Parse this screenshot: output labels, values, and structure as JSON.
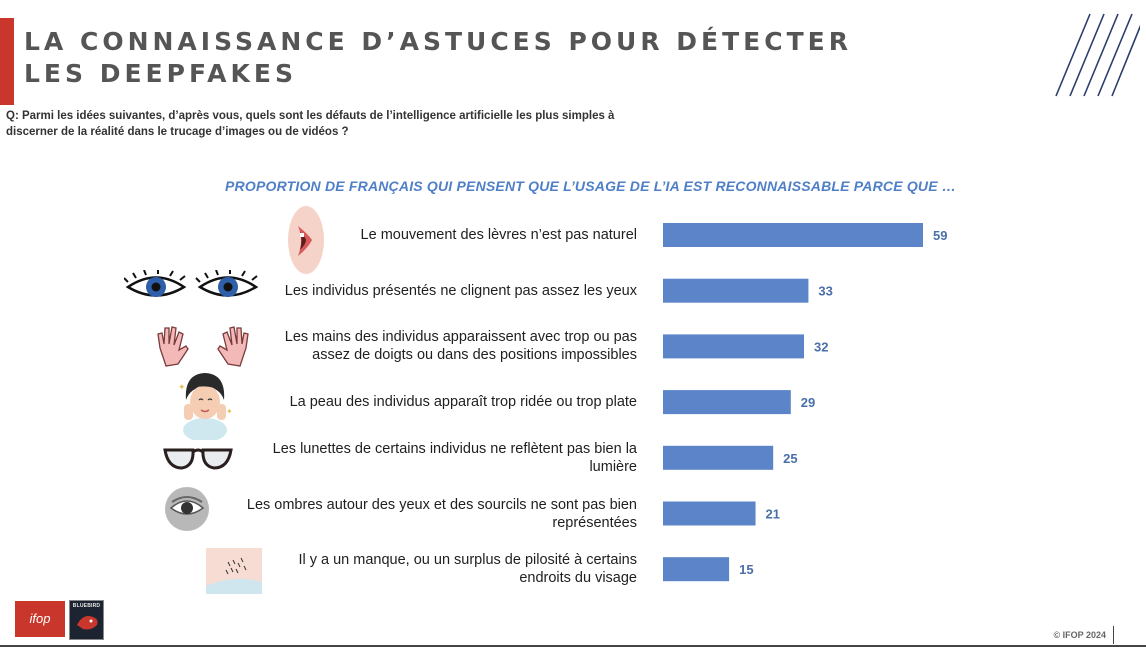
{
  "title": "LA CONNAISSANCE D’ASTUCES POUR DÉTECTER LES DEEPFAKES",
  "question": "Q: Parmi les idées suivantes, d’après vous, quels sont les défauts de l’intelligence artificielle les plus simples à discerner de la réalité dans le trucage d’images ou de vidéos ?",
  "colors": {
    "accent": "#c9372c",
    "bar": "#5b85c8",
    "subtitle": "#4f7fc7",
    "value": "#4a6fa8"
  },
  "chart_data": {
    "type": "bar",
    "orientation": "horizontal",
    "title": "PROPORTION DE FRANÇAIS QUI PENSENT QUE L’USAGE DE L’IA EST RECONNAISSABLE  PARCE QUE …",
    "xlabel": "",
    "ylabel": "",
    "xlim": [
      0,
      100
    ],
    "grid": false,
    "categories": [
      "Le mouvement des lèvres n’est pas naturel",
      "Les individus présentés ne clignent pas assez les yeux",
      "Les mains des individus apparaissent avec trop ou pas assez de doigts ou dans des positions impossibles",
      "La peau des individus apparaît trop ridée ou trop plate",
      "Les lunettes de certains individus ne reflètent pas bien la lumière",
      "Les ombres autour des yeux et des sourcils ne sont pas bien représentées",
      "Il y a un manque, ou un surplus de pilosité à certains endroits du visage"
    ],
    "values": [
      59,
      33,
      32,
      29,
      25,
      21,
      15
    ]
  },
  "icons": [
    "lips-icon",
    "eyes-icon",
    "hands-icon",
    "woman-face-icon",
    "glasses-icon",
    "eye-shadow-icon",
    "hairy-skin-icon"
  ],
  "footer": {
    "copyright": "© IFOP 2024",
    "logo_ifop": "ifop",
    "logo_partner": "BLUEBIRD"
  }
}
